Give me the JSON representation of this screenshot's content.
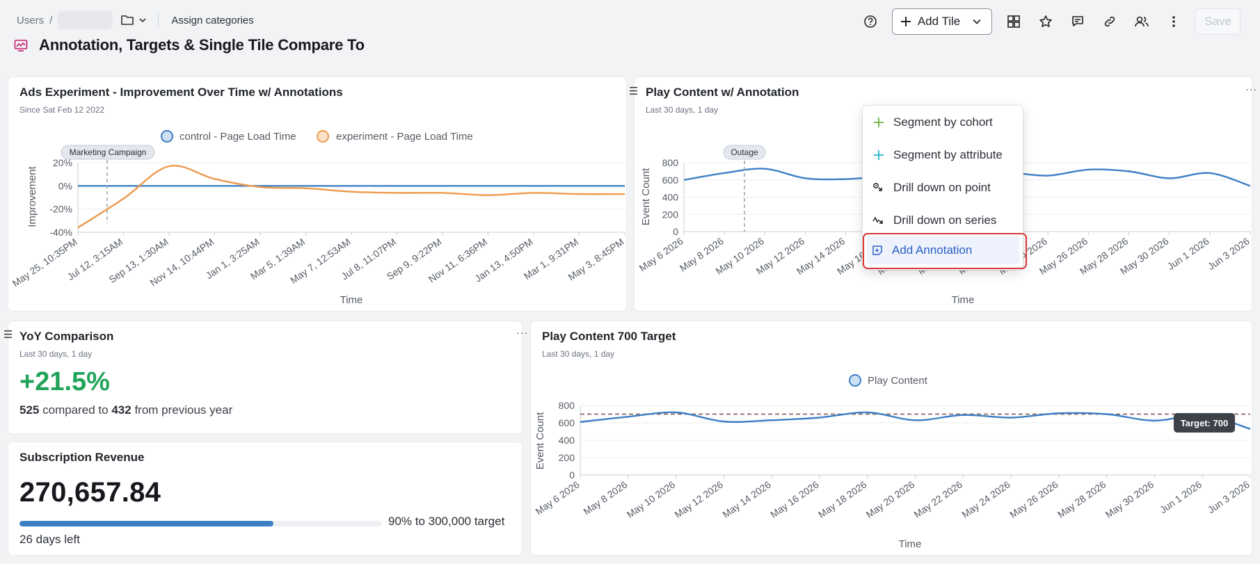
{
  "breadcrumb": {
    "root": "Users",
    "separator": "/",
    "assign_categories": "Assign categories"
  },
  "page": {
    "title": "Annotation, Targets & Single Tile Compare To"
  },
  "toolbar": {
    "add_tile_label": "Add Tile",
    "save_label": "Save"
  },
  "colors": {
    "control": "#3c7fc4",
    "experiment": "#ec9a4d",
    "positive": "#20a45a",
    "menu_highlight": "#edf2fc",
    "highlight_border": "#d93636",
    "target_line": "#8a6a60"
  },
  "tiles": {
    "ads": {
      "title": "Ads Experiment - Improvement Over Time w/ Annotations",
      "subtitle": "Since Sat Feb 12 2022",
      "legend": [
        "control - Page Load Time",
        "experiment - Page Load Time"
      ],
      "annotation": "Marketing Campaign",
      "xlabel": "Time",
      "ylabel": "Improvement"
    },
    "play": {
      "title": "Play Content w/ Annotation",
      "subtitle": "Last 30 days, 1 day",
      "annotation": "Outage",
      "xlabel": "Time",
      "ylabel": "Event Count"
    },
    "yoy": {
      "title": "YoY Comparison",
      "subtitle": "Last 30 days, 1 day",
      "change": "+21.5%",
      "current": "525",
      "compared_text": "compared to",
      "previous": "432",
      "suffix_text": "from previous year"
    },
    "revenue": {
      "title": "Subscription Revenue",
      "value": "270,657.84",
      "progress": 0.9,
      "target_text": "90% to 300,000 target",
      "days_left": "26 days left"
    },
    "target": {
      "title": "Play Content 700 Target",
      "subtitle": "Last 30 days, 1 day",
      "legend": "Play Content",
      "target_label": "Target: 700",
      "xlabel": "Time",
      "ylabel": "Event Count"
    }
  },
  "context_menu": {
    "items": [
      {
        "label": "Segment by cohort",
        "icon": "plus-icon"
      },
      {
        "label": "Segment by attribute",
        "icon": "plus-icon"
      },
      {
        "label": "Drill down on point",
        "icon": "drill-point-icon"
      },
      {
        "label": "Drill down on series",
        "icon": "drill-series-icon"
      },
      {
        "label": "Add Annotation",
        "icon": "add-annotation-icon"
      }
    ]
  },
  "chart_data": [
    {
      "type": "line",
      "x": [
        "May 25, 10:35PM",
        "Jul 12, 3:15AM",
        "Sep 13, 1:30AM",
        "Nov 14, 10:44PM",
        "Jan 1, 3:25AM",
        "Mar 5, 1:39AM",
        "May 7, 12:53AM",
        "Jul 8, 11:07PM",
        "Sep 9, 9:22PM",
        "Nov 11, 6:36PM",
        "Jan 13, 4:50PM",
        "Mar 1, 9:31PM",
        "May 3, 8:45PM"
      ],
      "series": [
        {
          "name": "control - Page Load Time",
          "values": [
            0,
            0,
            0,
            0,
            0,
            0,
            0,
            0,
            0,
            0,
            0,
            0,
            0
          ]
        },
        {
          "name": "experiment - Page Load Time",
          "values": [
            -36,
            -11,
            17,
            6,
            -1,
            -2,
            -5,
            -6,
            -6,
            -8,
            -6,
            -7,
            -7
          ]
        }
      ],
      "yticks": [
        "20%",
        "0%",
        "-20%",
        "-40%"
      ],
      "ylim": [
        -40,
        20
      ],
      "xlabel": "Time",
      "ylabel": "Improvement",
      "annotations": [
        {
          "label": "Marketing Campaign",
          "x": "Jul 12, 3:15AM"
        }
      ]
    },
    {
      "type": "line",
      "x": [
        "May 6 2026",
        "May 8 2026",
        "May 10 2026",
        "May 12 2026",
        "May 14 2026",
        "May 16 2026",
        "May 18 2026",
        "May 20 2026",
        "May 22 2026",
        "May 24 2026",
        "May 26 2026",
        "May 28 2026",
        "May 30 2026",
        "Jun 1 2026",
        "Jun 3 2026"
      ],
      "series": [
        {
          "name": "Play Content",
          "values": [
            600,
            680,
            730,
            620,
            610,
            640,
            620,
            610,
            680,
            650,
            720,
            700,
            620,
            680,
            530
          ]
        }
      ],
      "yticks": [
        800,
        600,
        400,
        200,
        0
      ],
      "ylim": [
        0,
        800
      ],
      "xlabel": "Time",
      "ylabel": "Event Count",
      "annotations": [
        {
          "label": "Outage",
          "x": "May 9 2026"
        }
      ]
    },
    {
      "type": "line",
      "x": [
        "May 6 2026",
        "May 8 2026",
        "May 10 2026",
        "May 12 2026",
        "May 14 2026",
        "May 16 2026",
        "May 18 2026",
        "May 20 2026",
        "May 22 2026",
        "May 24 2026",
        "May 26 2026",
        "May 28 2026",
        "May 30 2026",
        "Jun 1 2026",
        "Jun 3 2026"
      ],
      "series": [
        {
          "name": "Play Content",
          "values": [
            610,
            670,
            720,
            615,
            630,
            660,
            720,
            630,
            690,
            660,
            710,
            700,
            625,
            690,
            530
          ]
        }
      ],
      "target": 700,
      "yticks": [
        800,
        600,
        400,
        200,
        0
      ],
      "ylim": [
        0,
        800
      ],
      "xlabel": "Time",
      "ylabel": "Event Count"
    }
  ]
}
